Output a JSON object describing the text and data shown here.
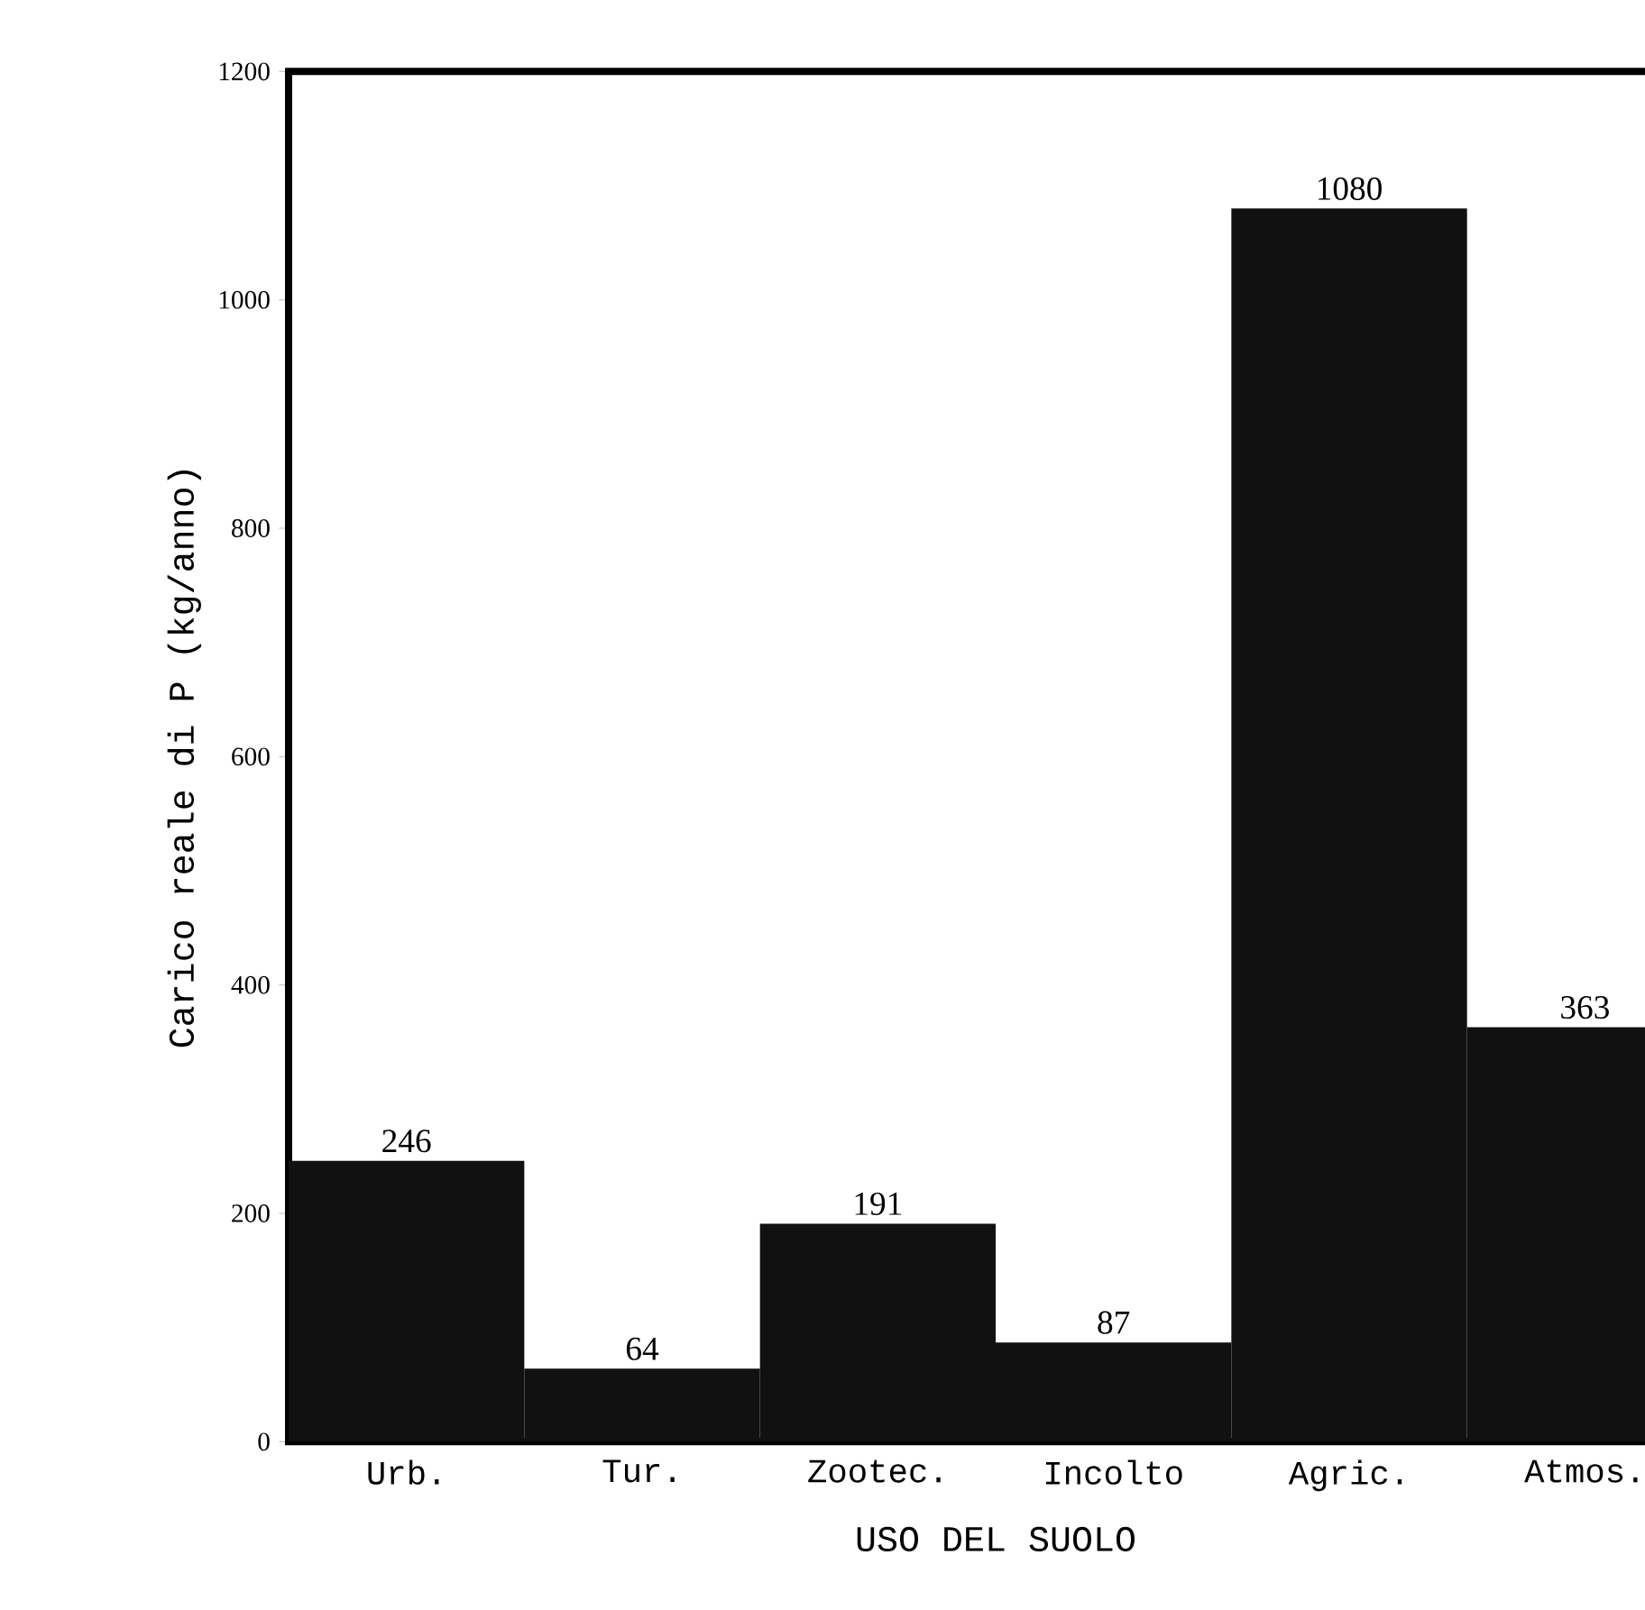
{
  "chart_data": {
    "type": "bar",
    "xlabel": "USO DEL SUOLO",
    "ylabel": "Carico reale di P (kg/anno)",
    "categories": [
      "Urb.",
      "Tur.",
      "Zootec.",
      "Incolto",
      "Agric.",
      "Atmos."
    ],
    "values": [
      246,
      64,
      191,
      87,
      1080,
      363
    ],
    "color": "#111111",
    "ylim": [
      0,
      1200
    ],
    "yticks": [
      0,
      200,
      400,
      600,
      800,
      1000,
      1200
    ],
    "data_labels": true,
    "grid": false
  }
}
